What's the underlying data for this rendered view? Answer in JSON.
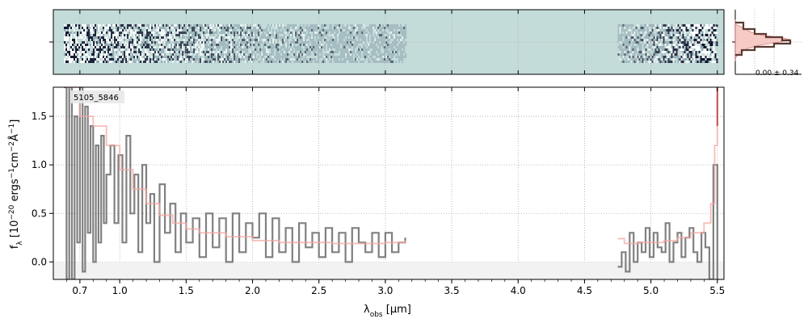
{
  "chart_data": [
    {
      "type": "heatmap",
      "panel": "2d-spectrum",
      "description_colors": {
        "background": "#c4dcd9",
        "dark": "#0a0f2a",
        "light": "#ffffff"
      },
      "xlim": [
        0.5,
        5.55
      ],
      "covered_ranges": [
        [
          0.58,
          3.15
        ],
        [
          4.75,
          5.5
        ]
      ]
    },
    {
      "type": "area",
      "panel": "spatial-profile",
      "annotation": "0.00 ± 0.34",
      "colors": {
        "fill": "#f6c6c0",
        "line": "#5a3a33",
        "outline": "#e07070"
      }
    },
    {
      "type": "line",
      "panel": "1d-spectrum",
      "label": "5105_5846",
      "xlabel_pre": "λ",
      "xlabel_sub": "obs",
      "xlabel_post": " [μm]",
      "ylabel": "f_λ [10^−20 ergs^−1cm^−2Å^−1]",
      "xlim": [
        0.5,
        5.55
      ],
      "ylim": [
        -0.18,
        1.8
      ],
      "xticks": [
        0.7,
        1.0,
        1.5,
        2.0,
        2.5,
        3.0,
        3.5,
        4.0,
        4.5,
        5.0,
        5.5
      ],
      "xtick_labels": [
        "0.7",
        "1.0",
        "1.5",
        "2.0",
        "2.5",
        "3.0",
        "3.5",
        "4.0",
        "4.5",
        "5.0",
        "5.5"
      ],
      "yticks": [
        0.0,
        0.5,
        1.0,
        1.5
      ],
      "ytick_labels": [
        "0.0",
        "0.5",
        "1.0",
        "1.5"
      ],
      "grid": true,
      "series": [
        {
          "role": "data",
          "color": "#808080",
          "x": [
            0.58,
            0.6,
            0.62,
            0.64,
            0.66,
            0.68,
            0.7,
            0.72,
            0.74,
            0.76,
            0.78,
            0.8,
            0.82,
            0.84,
            0.86,
            0.88,
            0.9,
            0.93,
            0.96,
            0.99,
            1.02,
            1.05,
            1.08,
            1.11,
            1.14,
            1.17,
            1.2,
            1.23,
            1.26,
            1.3,
            1.34,
            1.38,
            1.42,
            1.46,
            1.5,
            1.55,
            1.6,
            1.65,
            1.7,
            1.75,
            1.8,
            1.85,
            1.9,
            1.95,
            2.0,
            2.05,
            2.1,
            2.15,
            2.2,
            2.25,
            2.3,
            2.35,
            2.4,
            2.45,
            2.5,
            2.55,
            2.6,
            2.65,
            2.7,
            2.75,
            2.8,
            2.85,
            2.9,
            2.95,
            3.0,
            3.05,
            3.1,
            3.15,
            4.75,
            4.78,
            4.81,
            4.84,
            4.87,
            4.9,
            4.93,
            4.96,
            4.99,
            5.02,
            5.05,
            5.08,
            5.11,
            5.14,
            5.17,
            5.2,
            5.23,
            5.26,
            5.29,
            5.32,
            5.35,
            5.38,
            5.41,
            5.44,
            5.47,
            5.5
          ],
          "y": [
            1.8,
            -0.18,
            1.8,
            -0.18,
            1.5,
            0.2,
            1.8,
            -0.1,
            1.6,
            0.3,
            1.4,
            0.0,
            1.2,
            0.2,
            1.3,
            0.4,
            0.9,
            1.2,
            0.4,
            1.1,
            0.2,
            1.3,
            0.5,
            0.9,
            0.1,
            1.0,
            0.4,
            0.7,
            0.0,
            0.8,
            0.3,
            0.6,
            0.1,
            0.5,
            0.2,
            0.45,
            0.05,
            0.5,
            0.15,
            0.45,
            0.0,
            0.5,
            0.1,
            0.4,
            0.25,
            0.5,
            0.05,
            0.45,
            0.1,
            0.35,
            0.0,
            0.4,
            0.15,
            0.3,
            0.05,
            0.35,
            0.1,
            0.3,
            0.0,
            0.35,
            0.2,
            0.1,
            0.3,
            0.05,
            0.3,
            0.1,
            0.2,
            0.25,
            -0.05,
            0.1,
            -0.1,
            0.3,
            0.0,
            0.2,
            0.1,
            0.35,
            0.05,
            0.3,
            0.15,
            0.1,
            0.4,
            0.0,
            0.2,
            0.3,
            0.05,
            0.25,
            0.35,
            0.1,
            0.0,
            0.3,
            0.15,
            -0.18,
            1.0,
            -0.18
          ]
        },
        {
          "role": "model",
          "color": "#f4a6a0",
          "x": [
            0.6,
            0.7,
            0.8,
            0.9,
            1.0,
            1.1,
            1.2,
            1.3,
            1.4,
            1.5,
            1.6,
            1.8,
            2.0,
            2.2,
            2.4,
            2.6,
            2.8,
            3.0,
            3.15,
            4.75,
            4.8,
            4.9,
            5.0,
            5.1,
            5.2,
            5.3,
            5.4,
            5.45,
            5.48,
            5.5
          ],
          "y": [
            1.8,
            1.5,
            1.4,
            1.2,
            0.95,
            0.75,
            0.6,
            0.48,
            0.4,
            0.34,
            0.3,
            0.26,
            0.22,
            0.2,
            0.2,
            0.19,
            0.19,
            0.2,
            0.22,
            0.24,
            0.19,
            0.2,
            0.2,
            0.22,
            0.25,
            0.3,
            0.4,
            0.6,
            1.2,
            1.8
          ]
        }
      ]
    }
  ]
}
